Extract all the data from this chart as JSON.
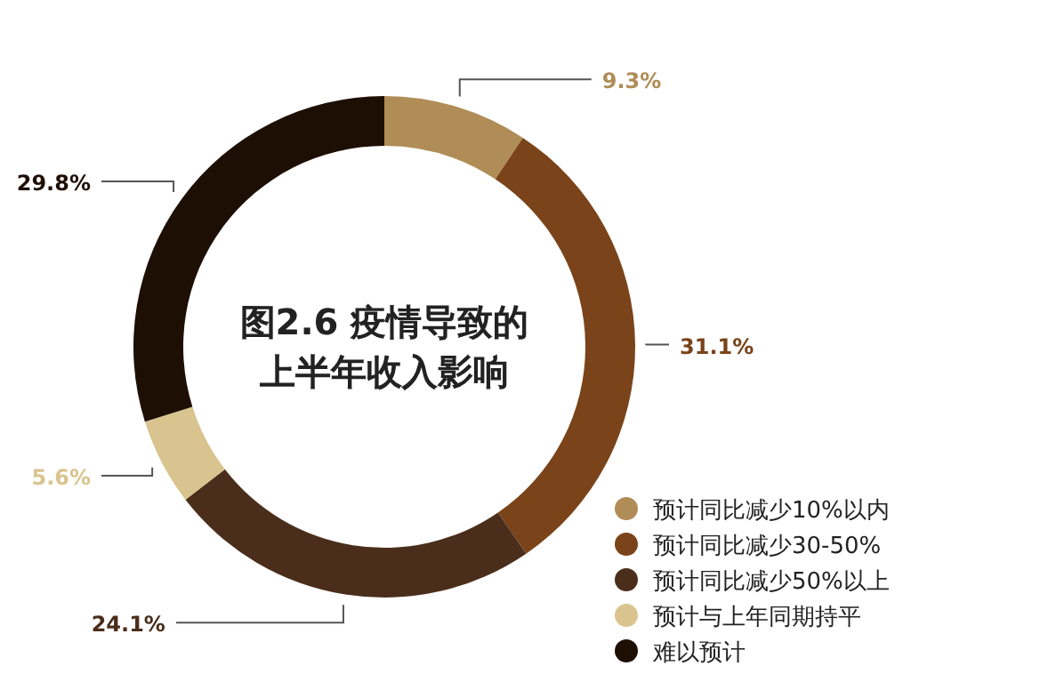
{
  "chart_data": {
    "type": "donut",
    "title": "图2.6 疫情导致的上半年收入影响",
    "categories": [
      "预计同比减少10%以内",
      "预计同比减少30-50%",
      "预计同比减少50%以上",
      "预计与上年同期持平",
      "难以预计"
    ],
    "values": [
      9.3,
      31.1,
      24.1,
      5.6,
      29.8
    ],
    "value_labels": [
      "9.3%",
      "31.1%",
      "24.1%",
      "5.6%",
      "29.8%"
    ],
    "colors": [
      "#b08d57",
      "#7a4319",
      "#4a2e1b",
      "#d9c48f",
      "#1e0f05"
    ],
    "legend": "bottom right"
  }
}
